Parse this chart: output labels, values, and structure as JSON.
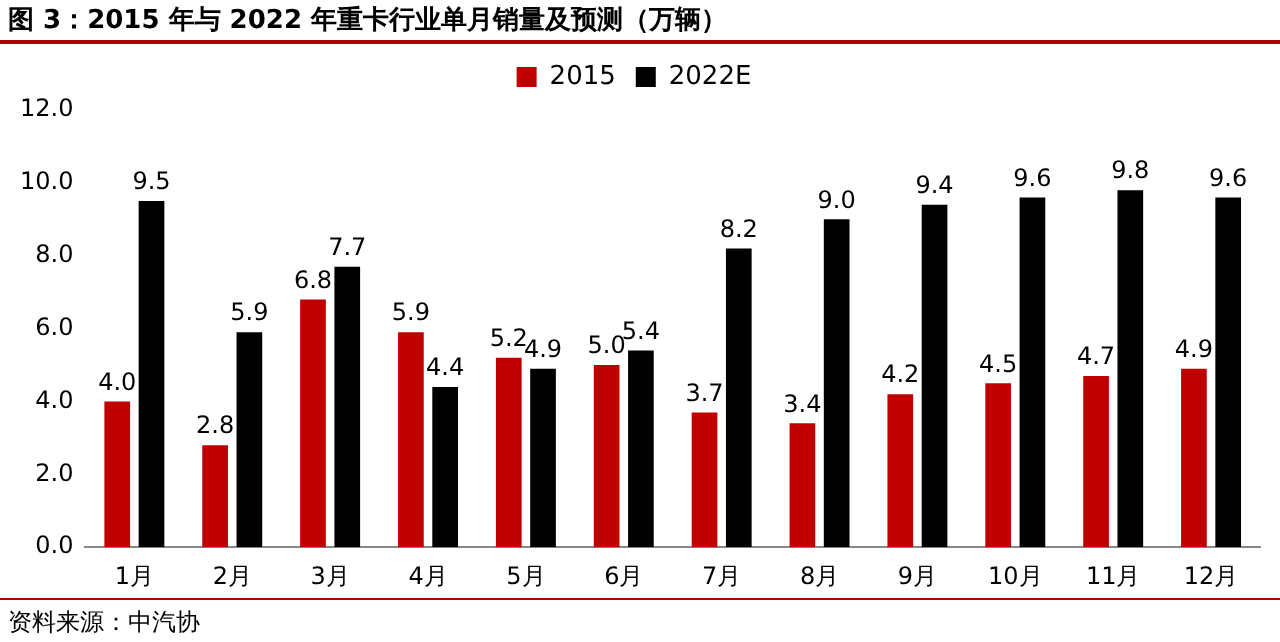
{
  "chart_data": {
    "type": "bar",
    "title": "图 3：2015 年与 2022 年重卡行业单月销量及预测（万辆）",
    "categories": [
      "1月",
      "2月",
      "3月",
      "4月",
      "5月",
      "6月",
      "7月",
      "8月",
      "9月",
      "10月",
      "11月",
      "12月"
    ],
    "series": [
      {
        "name": "2015",
        "color": "#c00000",
        "values": [
          4.0,
          2.8,
          6.8,
          5.9,
          5.2,
          5.0,
          3.7,
          3.4,
          4.2,
          4.5,
          4.7,
          4.9
        ],
        "value_labels": [
          "4.0",
          "2.8",
          "6.8",
          "5.9",
          "5.2",
          "5.0",
          "3.7",
          "3.4",
          "4.2",
          "4.5",
          "4.7",
          "4.9"
        ]
      },
      {
        "name": "2022E",
        "color": "#000000",
        "values": [
          9.5,
          5.9,
          7.7,
          4.4,
          4.9,
          5.4,
          8.2,
          9.0,
          9.4,
          9.6,
          9.8,
          9.6
        ],
        "value_labels": [
          "9.5",
          "5.9",
          "7.7",
          "4.4",
          "4.9",
          "5.4",
          "8.2",
          "9.0",
          "9.4",
          "9.6",
          "9.8",
          "9.6"
        ]
      }
    ],
    "ylim": [
      0,
      12
    ],
    "yticks": [
      {
        "value": 0,
        "label": "0.0"
      },
      {
        "value": 2,
        "label": "2.0"
      },
      {
        "value": 4,
        "label": "4.0"
      },
      {
        "value": 6,
        "label": "6.0"
      },
      {
        "value": 8,
        "label": "8.0"
      },
      {
        "value": 10,
        "label": "10.0"
      },
      {
        "value": 12,
        "label": "12.0"
      }
    ],
    "grid": false,
    "legend": "top",
    "annotations": [
      "资料来源：中汽协"
    ]
  }
}
